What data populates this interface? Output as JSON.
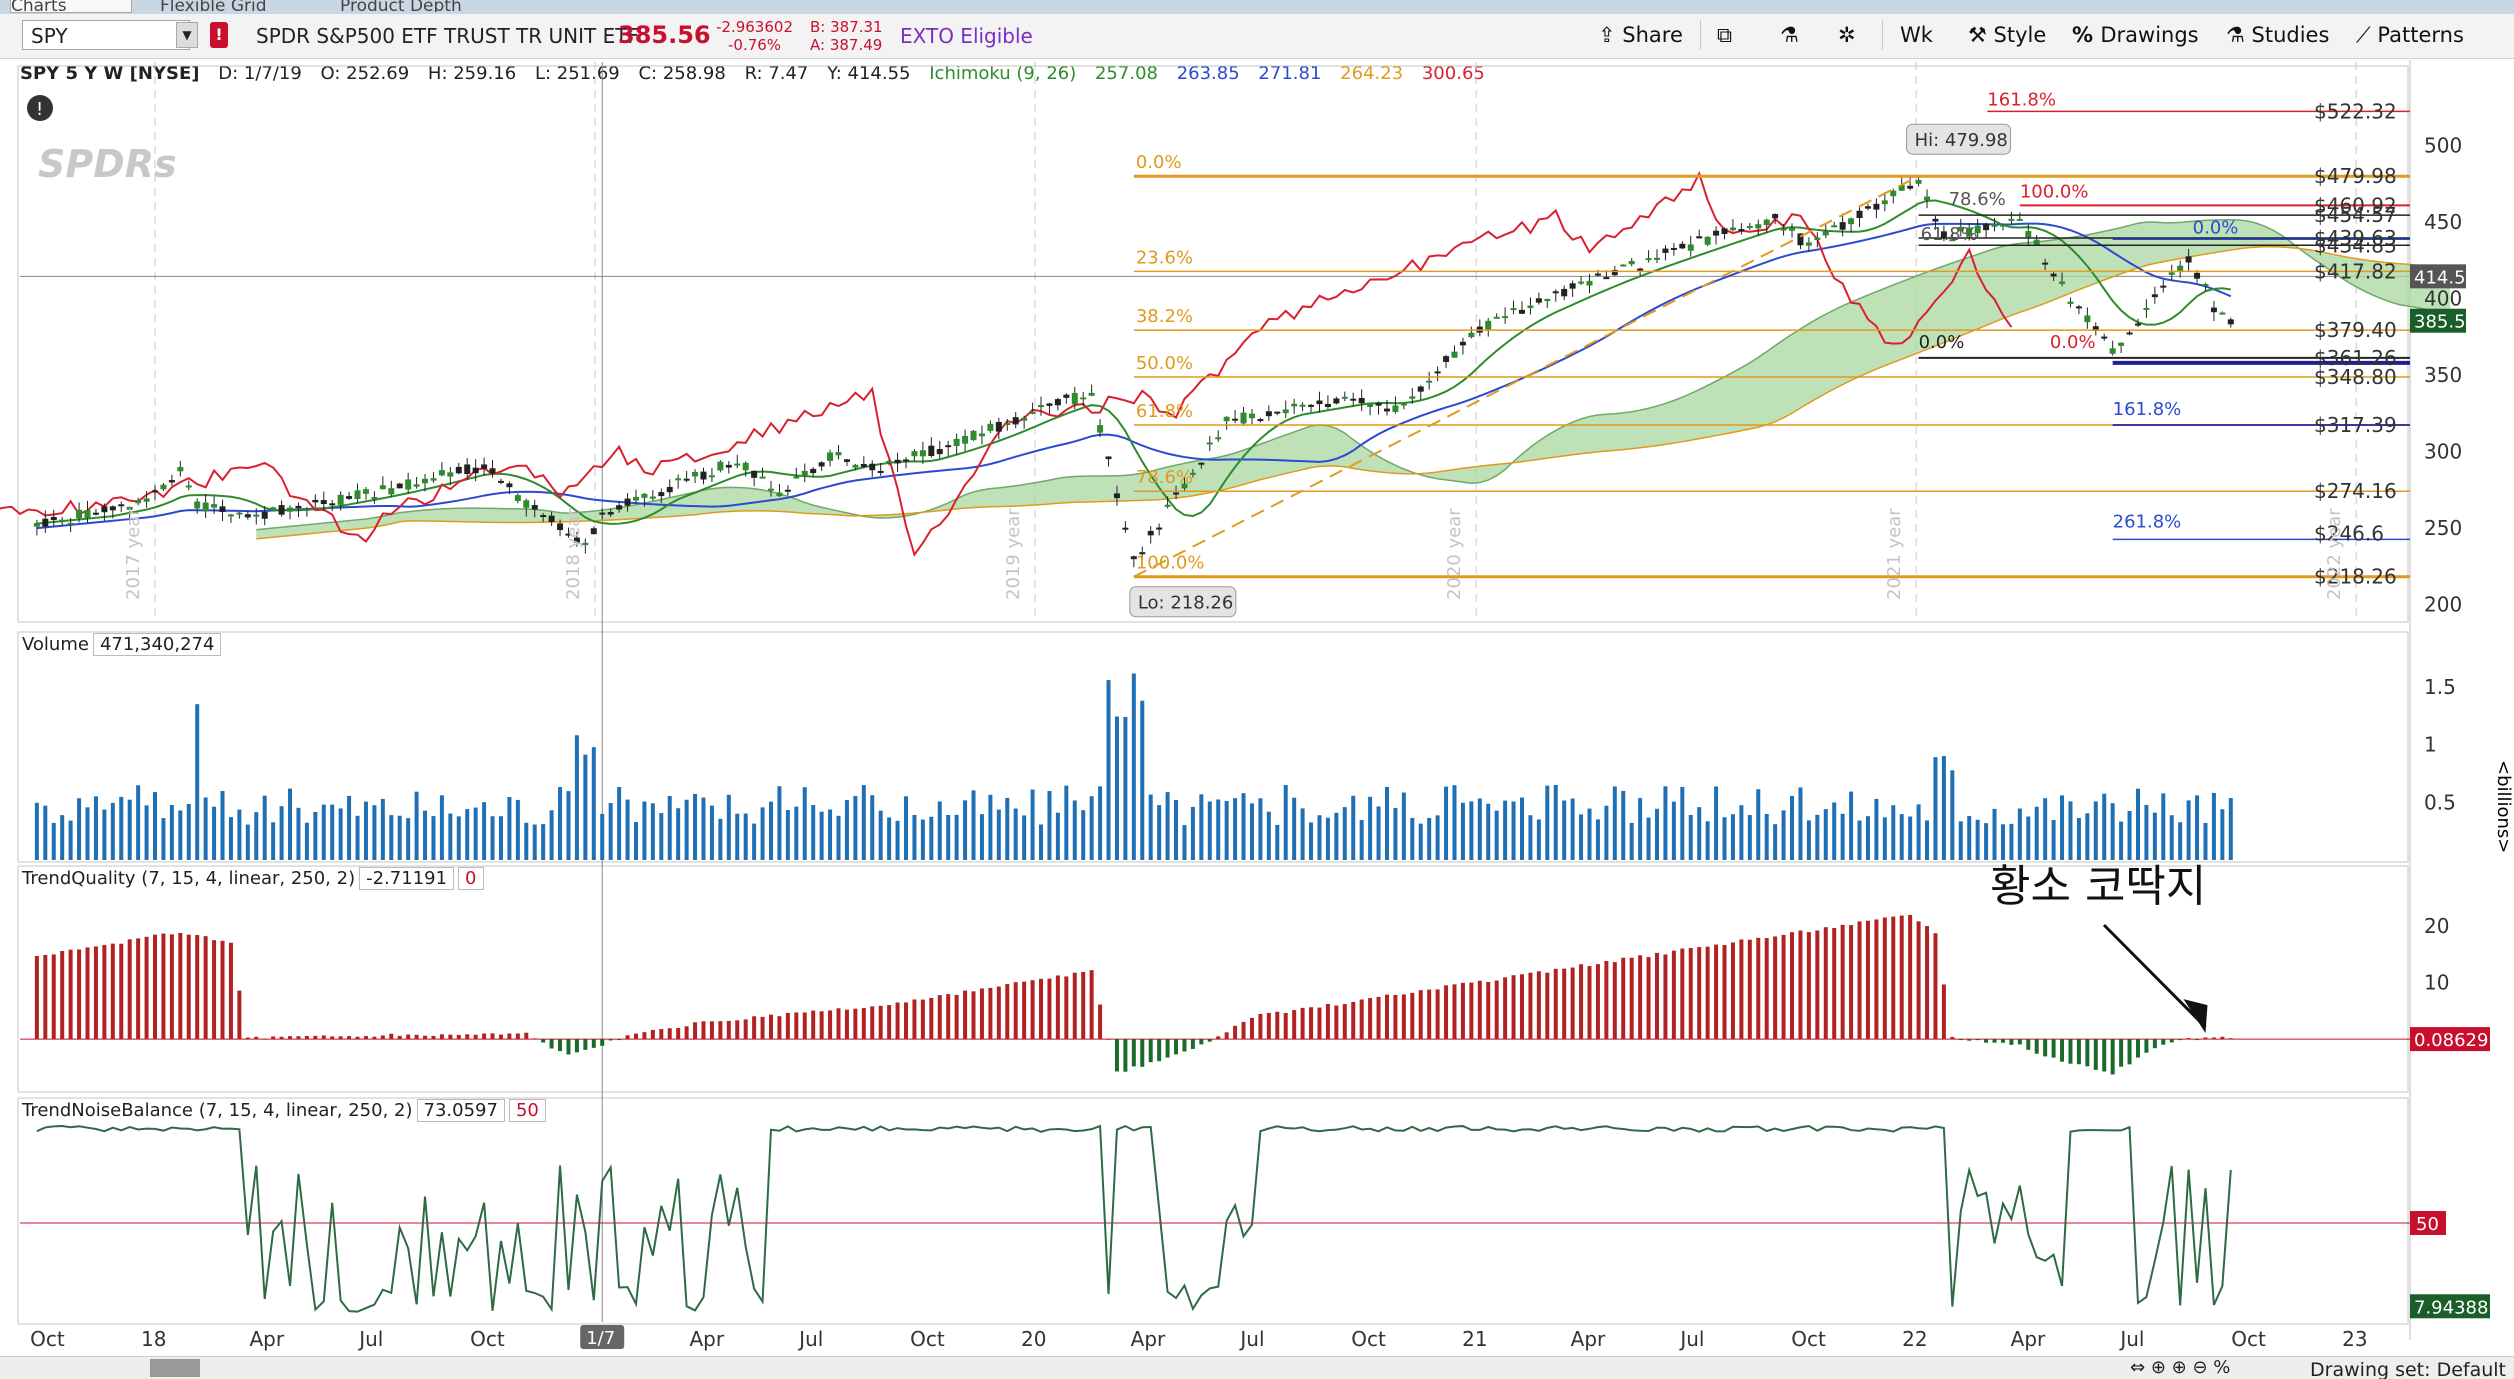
{
  "tabs": [
    "Charts",
    "Flexible Grid",
    "Product Depth"
  ],
  "toolbar": {
    "symbol": "SPY",
    "description": "SPDR S&P500 ETF TRUST TR UNIT ETF",
    "last": "385.56",
    "change": "-2.963602",
    "change_pct": "-0.76%",
    "bid": "B: 387.31",
    "ask": "A: 387.49",
    "exto": "EXTO Eligible",
    "share": "Share",
    "timeframe": "Wk",
    "style": "Style",
    "drawings": "Drawings",
    "studies": "Studies",
    "patterns": "Patterns"
  },
  "infobar": {
    "title": "SPY 5 Y W [NYSE]",
    "date": "D: 1/7/19",
    "open": "O: 252.69",
    "high": "H: 259.16",
    "low": "L: 251.69",
    "close": "C: 258.98",
    "range": "R: 7.47",
    "y": "Y: 414.55",
    "ichimoku_name": "Ichimoku (9, 26)",
    "ichimoku_vals": [
      "257.08",
      "263.85",
      "271.81",
      "264.23",
      "300.65"
    ],
    "ichimoku_colors": [
      "#2e8b2e",
      "#2a4bd1",
      "#2a4bd1",
      "#e09a1d",
      "#d9202f"
    ]
  },
  "logo": "SPDRs",
  "price_pane": {
    "hi_label": "Hi: 479.98",
    "lo_label": "Lo: 218.26",
    "crosshair_value": "414.55",
    "last_value": "385.56",
    "y_ticks": [
      "500",
      "450",
      "400",
      "350",
      "300",
      "250",
      "200"
    ],
    "year_marks": [
      "2017 year",
      "2018 year",
      "2019 year",
      "2020 year",
      "2021 year",
      "2022 year"
    ],
    "fib_big_pcts": [
      "0.0%",
      "23.6%",
      "38.2%",
      "50.0%",
      "61.8%",
      "78.6%",
      "100.0%"
    ],
    "fib_small_pcts": [
      "161.8%",
      "100.0%",
      "78.6%",
      "61.8%",
      "0.0%",
      "0.0%",
      "0.0%",
      "161.8%",
      "261.8%"
    ],
    "fib_prices": [
      "$522.32",
      "$479.98",
      "$460.92",
      "$454.57",
      "$439.63",
      "$434.83",
      "$417.82",
      "$379.40",
      "$361.26",
      "$348.80",
      "$317.39",
      "$274.16",
      "$246.6",
      "$218.26"
    ]
  },
  "volume_pane": {
    "name": "Volume",
    "value": "471,340,274",
    "y_ticks": [
      "1.5",
      "1",
      "0.5"
    ],
    "unit": "<billions>"
  },
  "tq_pane": {
    "name": "TrendQuality (7, 15, 4, linear, 250, 2)",
    "value": "-2.71191",
    "zero": "0",
    "y_ticks": [
      "20",
      "10"
    ],
    "last": "0.08629"
  },
  "tnb_pane": {
    "name": "TrendNoiseBalance (7, 15, 4, linear, 250, 2)",
    "value": "73.0597",
    "level": "50",
    "level_tag": "50",
    "last": "7.94388"
  },
  "annotation": "황소 코딱지",
  "x_axis": {
    "labels": [
      "Oct",
      "18",
      "Apr",
      "Jul",
      "Oct",
      "1/7",
      "Apr",
      "Jul",
      "Oct",
      "20",
      "Apr",
      "Jul",
      "Oct",
      "21",
      "Apr",
      "Jul",
      "Oct",
      "22",
      "Apr",
      "Jul",
      "Oct",
      "23"
    ]
  },
  "status": {
    "drawing_set": "Drawing set: Default"
  },
  "colors": {
    "up_red": "#d9202f",
    "down_green": "#1a6b2a",
    "vol_blue": "#1f6fb5",
    "fib_orange": "#e09a1d",
    "fib_blue": "#2a4bd1",
    "tnb_green": "#2e6b44"
  },
  "chart_data": {
    "type": "line",
    "title": "SPY 5 Y W [NYSE]",
    "xlabel": "",
    "ylabel": "",
    "price_range": [
      190,
      535
    ],
    "price_anchors": [
      {
        "x": "2017-09-25",
        "y": 253
      },
      {
        "x": "2017-12-25",
        "y": 267
      },
      {
        "x": "2018-01-22",
        "y": 286
      },
      {
        "x": "2018-02-05",
        "y": 264
      },
      {
        "x": "2018-04-02",
        "y": 260
      },
      {
        "x": "2018-07-02",
        "y": 273
      },
      {
        "x": "2018-10-01",
        "y": 291
      },
      {
        "x": "2018-10-29",
        "y": 270
      },
      {
        "x": "2018-12-24",
        "y": 240
      },
      {
        "x": "2019-01-07",
        "y": 259
      },
      {
        "x": "2019-04-29",
        "y": 294
      },
      {
        "x": "2019-06-03",
        "y": 274
      },
      {
        "x": "2019-07-22",
        "y": 300
      },
      {
        "x": "2019-08-12",
        "y": 288
      },
      {
        "x": "2019-10-28",
        "y": 305
      },
      {
        "x": "2020-01-13",
        "y": 331
      },
      {
        "x": "2020-02-17",
        "y": 337
      },
      {
        "x": "2020-03-23",
        "y": 228
      },
      {
        "x": "2020-06-08",
        "y": 320
      },
      {
        "x": "2020-09-28",
        "y": 335
      },
      {
        "x": "2020-10-26",
        "y": 327
      },
      {
        "x": "2021-01-04",
        "y": 380
      },
      {
        "x": "2021-04-05",
        "y": 412
      },
      {
        "x": "2021-07-05",
        "y": 437
      },
      {
        "x": "2021-09-06",
        "y": 453
      },
      {
        "x": "2021-10-04",
        "y": 434
      },
      {
        "x": "2022-01-03",
        "y": 477
      },
      {
        "x": "2022-01-24",
        "y": 441
      },
      {
        "x": "2022-03-28",
        "y": 452
      },
      {
        "x": "2022-05-09",
        "y": 400
      },
      {
        "x": "2022-06-13",
        "y": 366
      },
      {
        "x": "2022-08-15",
        "y": 427
      },
      {
        "x": "2022-09-05",
        "y": 395
      },
      {
        "x": "2022-09-19",
        "y": 385
      }
    ],
    "volume_range": [
      0,
      1.75
    ],
    "trend_quality_range": [
      -9,
      26
    ],
    "trend_noise_balance_range": [
      0,
      100
    ]
  }
}
